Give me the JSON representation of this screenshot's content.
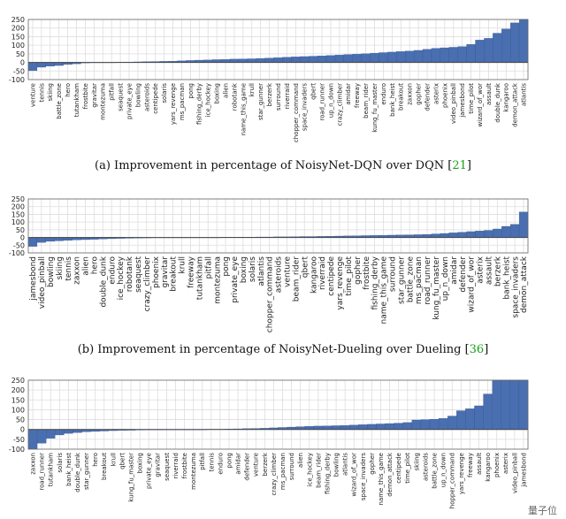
{
  "bar_color": "#4a6fb0",
  "watermark": "量子位",
  "captions": [
    {
      "text": "(a) Improvement in percentage of NoisyNet-DQN over DQN [",
      "ref": "21",
      "close": "]"
    },
    {
      "text": "(b) Improvement in percentage of NoisyNet-Dueling over Dueling [",
      "ref": "36",
      "close": "]"
    }
  ],
  "chart_data": [
    {
      "type": "bar",
      "ylim": [
        -100,
        250
      ],
      "yticks": [
        -100,
        -50,
        0,
        50,
        100,
        150,
        200,
        250
      ],
      "categories": [
        "venture",
        "tennis",
        "skiing",
        "battle_zone",
        "hero",
        "tutankham",
        "frostbite",
        "gravitar",
        "montezuma",
        "pitfall",
        "seaquest",
        "private_eye",
        "bowling",
        "asteroids",
        "centipede",
        "solaris",
        "yars_revenge",
        "ms_pacman",
        "pong",
        "fishing_derby",
        "ice_hockey",
        "boxing",
        "alien",
        "robotank",
        "name_this_game",
        "krull",
        "star_gunner",
        "berzerk",
        "surround",
        "riverraid",
        "chopper_command",
        "space_invaders",
        "qbert",
        "road_runner",
        "up_n_down",
        "crazy_climber",
        "amidar",
        "freeway",
        "beam_rider",
        "kung_fu_master",
        "enduro",
        "bank_heist",
        "breakout",
        "zaxxon",
        "gopher",
        "defender",
        "asterix",
        "phoenix",
        "video_pinball",
        "jamesbond",
        "time_pilot",
        "wizard_of_wor",
        "assault",
        "double_dunk",
        "kangaroo",
        "demon_attack",
        "atlantis"
      ],
      "values": [
        -48,
        -28,
        -22,
        -18,
        -12,
        -8,
        -3,
        -1,
        0,
        0,
        1,
        2,
        3,
        4,
        5,
        6,
        7,
        9,
        11,
        13,
        14,
        16,
        17,
        19,
        20,
        21,
        23,
        25,
        27,
        30,
        32,
        34,
        36,
        38,
        40,
        43,
        46,
        48,
        51,
        54,
        57,
        60,
        63,
        66,
        70,
        76,
        82,
        85,
        88,
        92,
        105,
        130,
        140,
        170,
        195,
        230,
        250
      ]
    },
    {
      "type": "bar",
      "ylim": [
        -100,
        250
      ],
      "yticks": [
        -100,
        -50,
        0,
        50,
        100,
        150,
        200,
        250
      ],
      "categories": [
        "jamesbond",
        "video_pinball",
        "bowling",
        "skiing",
        "tennis",
        "zaxxon",
        "alien",
        "hero",
        "double_dunk",
        "enduro",
        "ice_hockey",
        "robotank",
        "seaquest",
        "crazy_climber",
        "phoenix",
        "gravitar",
        "breakout",
        "krull",
        "freeway",
        "tutankham",
        "pitfall",
        "montezuma",
        "pong",
        "private_eye",
        "boxing",
        "solaris",
        "atlantis",
        "chopper_command",
        "asteroids",
        "venture",
        "beam_rider",
        "qbert",
        "kangaroo",
        "riverraid",
        "centipede",
        "yars_revenge",
        "time_pilot",
        "gopher",
        "frostbite",
        "fishing_derby",
        "name_this_game",
        "surround",
        "star_gunner",
        "battle_zone",
        "ms_pacman",
        "road_runner",
        "kung_fu_master",
        "up_n_down",
        "amidar",
        "defender",
        "wizard_of_wor",
        "asterix",
        "assault",
        "berzerk",
        "bank_heist",
        "space_invaders",
        "demon_attack"
      ],
      "values": [
        -58,
        -32,
        -25,
        -22,
        -19,
        -16,
        -14,
        -12,
        -10,
        -8,
        -6,
        -5,
        -4,
        -3,
        -2,
        -2,
        -1,
        0,
        0,
        0,
        0,
        0,
        1,
        1,
        2,
        2,
        3,
        3,
        4,
        4,
        5,
        6,
        6,
        7,
        8,
        9,
        10,
        11,
        12,
        13,
        14,
        15,
        16,
        17,
        18,
        20,
        23,
        26,
        30,
        34,
        38,
        42,
        46,
        55,
        72,
        85,
        165
      ]
    },
    {
      "type": "bar",
      "ylim": [
        -100,
        250
      ],
      "yticks": [
        -100,
        -50,
        0,
        50,
        100,
        150,
        200,
        250
      ],
      "categories": [
        "zaxxon",
        "road_runner",
        "tutankham",
        "solaris",
        "bank_heist",
        "double_dunk",
        "star_gunner",
        "hero",
        "breakout",
        "krull",
        "qbert",
        "kung_fu_master",
        "boxing",
        "private_eye",
        "gravitar",
        "seaquest",
        "riverraid",
        "frostbite",
        "montezuma",
        "pitfall",
        "tennis",
        "enduro",
        "pong",
        "amidar",
        "defender",
        "venture",
        "berzerk",
        "crazy_climber",
        "ms_pacman",
        "surround",
        "alien",
        "ice_hockey",
        "beam_rider",
        "fishing_derby",
        "bowling",
        "atlantis",
        "wizard_of_wor",
        "space_invaders",
        "gopher",
        "name_this_game",
        "demon_attack",
        "centipede",
        "time_pilot",
        "skiing",
        "asteroids",
        "battle_zone",
        "up_n_down",
        "chopper_command",
        "yars_revenge",
        "freeway",
        "assault",
        "kangaroo",
        "phoenix",
        "asterix",
        "video_pinball",
        "jamesbond"
      ],
      "values": [
        -100,
        -70,
        -45,
        -28,
        -20,
        -16,
        -12,
        -10,
        -8,
        -6,
        -5,
        -4,
        -3,
        -2,
        -2,
        -1,
        0,
        0,
        0,
        0,
        1,
        1,
        2,
        3,
        4,
        5,
        6,
        8,
        10,
        12,
        14,
        16,
        17,
        18,
        19,
        20,
        22,
        24,
        26,
        28,
        30,
        32,
        35,
        48,
        50,
        52,
        56,
        68,
        95,
        105,
        120,
        180,
        250,
        250,
        250,
        250
      ]
    }
  ]
}
